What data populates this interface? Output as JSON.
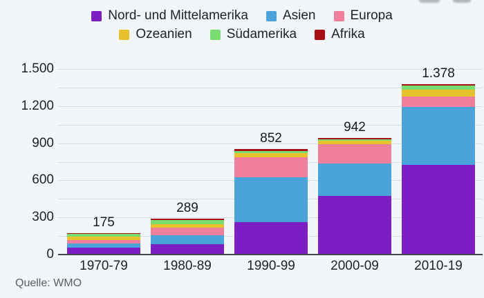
{
  "chart_data": {
    "type": "bar",
    "stacked": true,
    "title": "",
    "categories": [
      "1970-79",
      "1980-89",
      "1990-99",
      "2000-09",
      "2010-19"
    ],
    "series": [
      {
        "name": "Nord- und Mittelamerika",
        "color": "#7b1fc4",
        "values": [
          58,
          84,
          262,
          476,
          727
        ]
      },
      {
        "name": "Asien",
        "color": "#4aa3da",
        "values": [
          33,
          74,
          361,
          259,
          465
        ]
      },
      {
        "name": "Europa",
        "color": "#ef7f9a",
        "values": [
          29,
          57,
          163,
          160,
          84
        ]
      },
      {
        "name": "Ozeanien",
        "color": "#e8c22d",
        "values": [
          27,
          30,
          36,
          23,
          55
        ]
      },
      {
        "name": "Südamerika",
        "color": "#79dc6f",
        "values": [
          20,
          34,
          17,
          13,
          34
        ]
      },
      {
        "name": "Afrika",
        "color": "#a91016",
        "values": [
          8,
          10,
          13,
          11,
          13
        ]
      }
    ],
    "totals": [
      175,
      289,
      852,
      942,
      1378
    ],
    "total_labels": [
      "175",
      "289",
      "852",
      "942",
      "1.378"
    ],
    "ylim": [
      0,
      1500
    ],
    "yticks": [
      0,
      300,
      600,
      900,
      1200,
      1500
    ],
    "ytick_labels": [
      "0",
      "300",
      "600",
      "900",
      "1.200",
      "1.500"
    ],
    "grid": true,
    "grid_step": 150,
    "legend_position": "top",
    "source": "Quelle: WMO"
  },
  "source": {
    "label": "Quelle: WMO"
  }
}
